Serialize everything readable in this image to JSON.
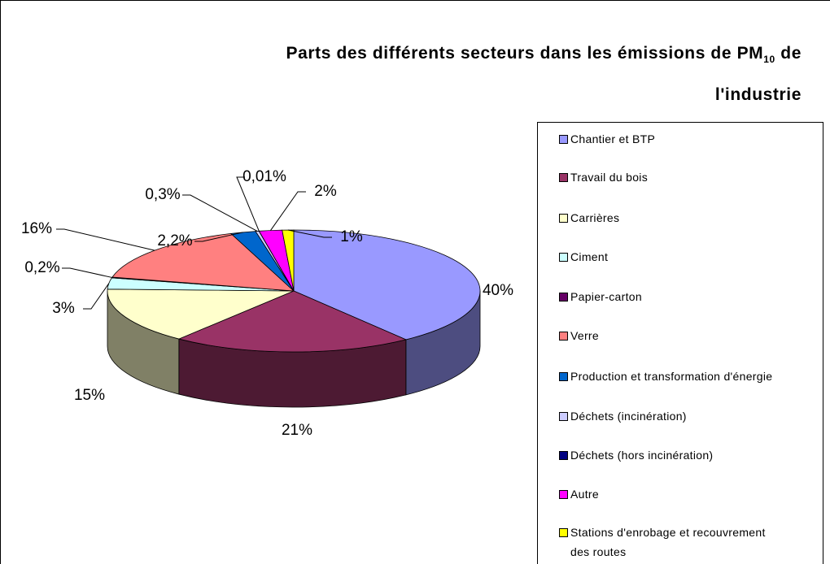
{
  "chart_data": {
    "type": "pie3d",
    "title": {
      "text": "Parts des différents secteurs dans les émissions de PM",
      "subscript": "10",
      "suffix": "de",
      "line2": "l'industrie"
    },
    "categories": [
      "Chantier et BTP",
      "Travail du bois",
      "Carrières",
      "Ciment",
      "Papier-carton",
      "Verre",
      "Production et transformation d'énergie",
      "Déchets (incinération)",
      "Déchets (hors incinération)",
      "Autre",
      "Stations d'enrobage et recouvrement des routes"
    ],
    "values": [
      40,
      21,
      15,
      3,
      0.2,
      16,
      2.2,
      0.3,
      0.01,
      2,
      1
    ],
    "value_labels": [
      "40%",
      "21%",
      "15%",
      "3%",
      "0,2%",
      "16%",
      "2,2%",
      "0,3%",
      "0,01%",
      "2%",
      "1%"
    ],
    "colors": [
      "#9999ff",
      "#993366",
      "#ffffcc",
      "#ccffff",
      "#660066",
      "#ff8080",
      "#0066cc",
      "#ccccff",
      "#000080",
      "#ff00ff",
      "#ffff00"
    ],
    "legend": "right"
  }
}
